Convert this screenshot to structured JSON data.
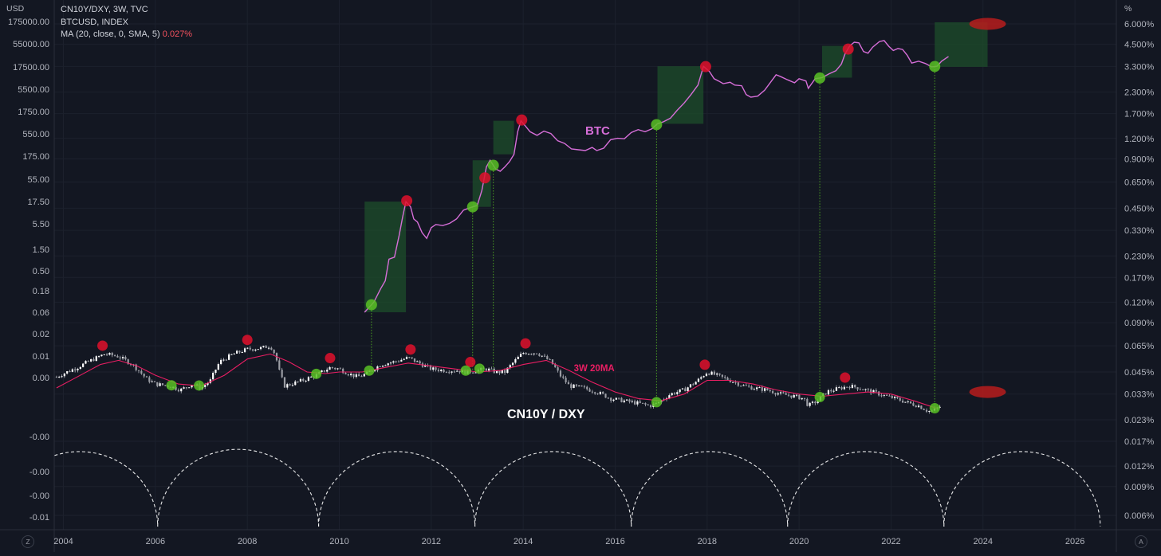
{
  "header": {
    "left_unit": "USD",
    "right_unit": "%",
    "legend_line1": "CN10Y/DXY, 3W, TVC",
    "legend_line2": "BTCUSD, INDEX",
    "legend_ma_label": "MA (20, close, 0, SMA, 5)",
    "legend_ma_value": "0.027%"
  },
  "corner_buttons": {
    "left": "Z",
    "right": "A"
  },
  "colors": {
    "background": "#131722",
    "btc_line": "#d66ed8",
    "ma_line": "#e91e63",
    "candle_up": "#ffffff",
    "candle_down": "#d1d4dc",
    "top_marker": "#e0112b",
    "bottom_marker": "#59c124",
    "range_box": "#1e4d2b",
    "guide_line": "#59c124",
    "cycle_arc": "#ffffff"
  },
  "chart_data": {
    "type": "line",
    "x_range": [
      2003.8,
      2026.9
    ],
    "left_axis": {
      "scale": "log",
      "ticks": [
        "175000.00",
        "55000.00",
        "17500.00",
        "5500.00",
        "1750.00",
        "550.00",
        "175.00",
        "55.00",
        "17.50",
        "5.50",
        "1.50",
        "0.50",
        "0.18",
        "0.06",
        "0.02",
        "0.01",
        "0.00",
        "-0.00",
        "-0.00",
        "-0.00",
        "-0.01"
      ]
    },
    "right_axis": {
      "scale": "log",
      "ticks": [
        "6.000%",
        "4.500%",
        "3.300%",
        "2.300%",
        "1.700%",
        "1.200%",
        "0.900%",
        "0.650%",
        "0.450%",
        "0.330%",
        "0.230%",
        "0.170%",
        "0.120%",
        "0.090%",
        "0.065%",
        "0.045%",
        "0.033%",
        "0.023%",
        "0.017%",
        "0.012%",
        "0.009%",
        "0.006%"
      ]
    },
    "x_ticks": [
      "2004",
      "2006",
      "2008",
      "2010",
      "2012",
      "2014",
      "2016",
      "2018",
      "2020",
      "2022",
      "2024",
      "2026"
    ],
    "annotations": {
      "btc": "BTC",
      "ma": "3W 20MA",
      "ratio": "CN10Y / DXY"
    },
    "btc_series": {
      "name": "BTCUSD",
      "points": [
        [
          2010.55,
          0.06
        ],
        [
          2010.75,
          0.1
        ],
        [
          2010.9,
          0.2
        ],
        [
          2011.0,
          0.3
        ],
        [
          2011.08,
          0.9
        ],
        [
          2011.2,
          1.0
        ],
        [
          2011.3,
          3
        ],
        [
          2011.38,
          8
        ],
        [
          2011.45,
          17
        ],
        [
          2011.55,
          13
        ],
        [
          2011.62,
          7
        ],
        [
          2011.7,
          6
        ],
        [
          2011.8,
          3.5
        ],
        [
          2011.9,
          2.6
        ],
        [
          2012.0,
          4.5
        ],
        [
          2012.1,
          5.3
        ],
        [
          2012.25,
          5.0
        ],
        [
          2012.4,
          5.6
        ],
        [
          2012.55,
          7
        ],
        [
          2012.7,
          11
        ],
        [
          2012.8,
          12
        ],
        [
          2012.9,
          13
        ],
        [
          2013.0,
          14
        ],
        [
          2013.1,
          30
        ],
        [
          2013.2,
          100
        ],
        [
          2013.28,
          140
        ],
        [
          2013.4,
          90
        ],
        [
          2013.5,
          80
        ],
        [
          2013.6,
          100
        ],
        [
          2013.7,
          130
        ],
        [
          2013.8,
          190
        ],
        [
          2013.88,
          600
        ],
        [
          2013.95,
          1050
        ],
        [
          2014.05,
          800
        ],
        [
          2014.15,
          600
        ],
        [
          2014.3,
          500
        ],
        [
          2014.45,
          620
        ],
        [
          2014.6,
          550
        ],
        [
          2014.75,
          380
        ],
        [
          2014.9,
          330
        ],
        [
          2015.05,
          250
        ],
        [
          2015.2,
          240
        ],
        [
          2015.35,
          230
        ],
        [
          2015.5,
          270
        ],
        [
          2015.6,
          230
        ],
        [
          2015.75,
          260
        ],
        [
          2015.9,
          400
        ],
        [
          2016.05,
          430
        ],
        [
          2016.2,
          420
        ],
        [
          2016.35,
          580
        ],
        [
          2016.5,
          670
        ],
        [
          2016.65,
          600
        ],
        [
          2016.8,
          700
        ],
        [
          2016.92,
          900
        ],
        [
          2017.05,
          1000
        ],
        [
          2017.2,
          1200
        ],
        [
          2017.35,
          1800
        ],
        [
          2017.5,
          2600
        ],
        [
          2017.65,
          4000
        ],
        [
          2017.8,
          6500
        ],
        [
          2017.92,
          17000
        ],
        [
          2018.05,
          13000
        ],
        [
          2018.15,
          9000
        ],
        [
          2018.25,
          8000
        ],
        [
          2018.35,
          7000
        ],
        [
          2018.5,
          7500
        ],
        [
          2018.6,
          6500
        ],
        [
          2018.75,
          6300
        ],
        [
          2018.85,
          4000
        ],
        [
          2018.95,
          3500
        ],
        [
          2019.1,
          3700
        ],
        [
          2019.25,
          5000
        ],
        [
          2019.4,
          8000
        ],
        [
          2019.5,
          11000
        ],
        [
          2019.6,
          10000
        ],
        [
          2019.75,
          8500
        ],
        [
          2019.9,
          7300
        ],
        [
          2020.0,
          9000
        ],
        [
          2020.15,
          8000
        ],
        [
          2020.2,
          5500
        ],
        [
          2020.35,
          9000
        ],
        [
          2020.5,
          9500
        ],
        [
          2020.65,
          11500
        ],
        [
          2020.8,
          13500
        ],
        [
          2020.92,
          19000
        ],
        [
          2021.0,
          32000
        ],
        [
          2021.1,
          48000
        ],
        [
          2021.2,
          58000
        ],
        [
          2021.3,
          56000
        ],
        [
          2021.4,
          36000
        ],
        [
          2021.5,
          33000
        ],
        [
          2021.6,
          45000
        ],
        [
          2021.75,
          60000
        ],
        [
          2021.85,
          63000
        ],
        [
          2021.95,
          47000
        ],
        [
          2022.05,
          38000
        ],
        [
          2022.15,
          42000
        ],
        [
          2022.25,
          40000
        ],
        [
          2022.35,
          30000
        ],
        [
          2022.45,
          20000
        ],
        [
          2022.6,
          22000
        ],
        [
          2022.75,
          19500
        ],
        [
          2022.88,
          16500
        ],
        [
          2023.0,
          17000
        ],
        [
          2023.1,
          22000
        ],
        [
          2023.25,
          28000
        ]
      ]
    },
    "ratio_series": {
      "name": "CN10Y/DXY",
      "unit": "%",
      "points": [
        [
          2003.85,
          0.042
        ],
        [
          2004.0,
          0.044
        ],
        [
          2004.3,
          0.048
        ],
        [
          2004.6,
          0.053
        ],
        [
          2004.9,
          0.058
        ],
        [
          2005.2,
          0.056
        ],
        [
          2005.5,
          0.05
        ],
        [
          2005.8,
          0.041
        ],
        [
          2006.0,
          0.038
        ],
        [
          2006.3,
          0.037
        ],
        [
          2006.55,
          0.035
        ],
        [
          2006.8,
          0.038
        ],
        [
          2007.0,
          0.036
        ],
        [
          2007.2,
          0.04
        ],
        [
          2007.4,
          0.052
        ],
        [
          2007.7,
          0.058
        ],
        [
          2008.0,
          0.062
        ],
        [
          2008.3,
          0.063
        ],
        [
          2008.5,
          0.065
        ],
        [
          2008.6,
          0.058
        ],
        [
          2008.7,
          0.045
        ],
        [
          2008.8,
          0.037
        ],
        [
          2008.95,
          0.038
        ],
        [
          2009.2,
          0.04
        ],
        [
          2009.5,
          0.043
        ],
        [
          2009.8,
          0.048
        ],
        [
          2010.0,
          0.047
        ],
        [
          2010.2,
          0.044
        ],
        [
          2010.4,
          0.042
        ],
        [
          2010.6,
          0.044
        ],
        [
          2010.9,
          0.05
        ],
        [
          2011.2,
          0.052
        ],
        [
          2011.5,
          0.055
        ],
        [
          2011.8,
          0.05
        ],
        [
          2012.0,
          0.047
        ],
        [
          2012.3,
          0.046
        ],
        [
          2012.6,
          0.046
        ],
        [
          2012.75,
          0.045
        ],
        [
          2013.0,
          0.046
        ],
        [
          2013.2,
          0.047
        ],
        [
          2013.4,
          0.045
        ],
        [
          2013.6,
          0.045
        ],
        [
          2013.8,
          0.052
        ],
        [
          2014.0,
          0.059
        ],
        [
          2014.3,
          0.059
        ],
        [
          2014.6,
          0.052
        ],
        [
          2014.8,
          0.043
        ],
        [
          2015.0,
          0.037
        ],
        [
          2015.3,
          0.036
        ],
        [
          2015.6,
          0.034
        ],
        [
          2015.9,
          0.031
        ],
        [
          2016.2,
          0.03
        ],
        [
          2016.5,
          0.029
        ],
        [
          2016.75,
          0.028
        ],
        [
          2016.92,
          0.029
        ],
        [
          2017.2,
          0.033
        ],
        [
          2017.5,
          0.035
        ],
        [
          2017.8,
          0.04
        ],
        [
          2018.0,
          0.045
        ],
        [
          2018.2,
          0.043
        ],
        [
          2018.5,
          0.04
        ],
        [
          2018.8,
          0.037
        ],
        [
          2019.0,
          0.036
        ],
        [
          2019.3,
          0.035
        ],
        [
          2019.6,
          0.033
        ],
        [
          2019.9,
          0.032
        ],
        [
          2020.1,
          0.031
        ],
        [
          2020.2,
          0.028
        ],
        [
          2020.4,
          0.03
        ],
        [
          2020.6,
          0.034
        ],
        [
          2020.9,
          0.036
        ],
        [
          2021.1,
          0.037
        ],
        [
          2021.3,
          0.036
        ],
        [
          2021.6,
          0.034
        ],
        [
          2021.9,
          0.032
        ],
        [
          2022.1,
          0.031
        ],
        [
          2022.4,
          0.029
        ],
        [
          2022.6,
          0.028
        ],
        [
          2022.8,
          0.026
        ],
        [
          2022.9,
          0.026
        ],
        [
          2023.0,
          0.027
        ],
        [
          2023.1,
          0.028
        ]
      ]
    },
    "ma_series": {
      "name": "MA (20, close, 0, SMA, 5)",
      "unit": "%",
      "points": [
        [
          2003.85,
          0.036
        ],
        [
          2004.3,
          0.042
        ],
        [
          2004.8,
          0.05
        ],
        [
          2005.2,
          0.053
        ],
        [
          2005.6,
          0.049
        ],
        [
          2006.0,
          0.043
        ],
        [
          2006.5,
          0.038
        ],
        [
          2007.0,
          0.037
        ],
        [
          2007.5,
          0.043
        ],
        [
          2008.0,
          0.054
        ],
        [
          2008.5,
          0.058
        ],
        [
          2008.9,
          0.052
        ],
        [
          2009.3,
          0.045
        ],
        [
          2009.7,
          0.044
        ],
        [
          2010.0,
          0.045
        ],
        [
          2010.5,
          0.045
        ],
        [
          2011.0,
          0.048
        ],
        [
          2011.5,
          0.051
        ],
        [
          2012.0,
          0.049
        ],
        [
          2012.5,
          0.047
        ],
        [
          2013.0,
          0.045
        ],
        [
          2013.5,
          0.046
        ],
        [
          2014.0,
          0.05
        ],
        [
          2014.5,
          0.053
        ],
        [
          2015.0,
          0.046
        ],
        [
          2015.5,
          0.039
        ],
        [
          2016.0,
          0.034
        ],
        [
          2016.5,
          0.031
        ],
        [
          2017.0,
          0.03
        ],
        [
          2017.5,
          0.033
        ],
        [
          2018.0,
          0.04
        ],
        [
          2018.5,
          0.04
        ],
        [
          2019.0,
          0.038
        ],
        [
          2019.5,
          0.035
        ],
        [
          2020.0,
          0.033
        ],
        [
          2020.5,
          0.032
        ],
        [
          2021.0,
          0.033
        ],
        [
          2021.5,
          0.034
        ],
        [
          2022.0,
          0.033
        ],
        [
          2022.5,
          0.03
        ],
        [
          2023.0,
          0.027
        ]
      ]
    },
    "ratio_bottoms": [
      2006.35,
      2006.95,
      2009.5,
      2010.65,
      2012.75,
      2013.05,
      2016.9,
      2020.45,
      2022.95
    ],
    "ratio_tops": [
      2004.85,
      2008.0,
      2009.8,
      2011.55,
      2012.85,
      2014.05,
      2017.95,
      2021.0
    ],
    "btc_bottoms": [
      2010.7,
      2012.9,
      2013.35,
      2016.9,
      2020.45,
      2022.95
    ],
    "btc_tops": [
      2011.45,
      2013.15,
      2013.95,
      2017.95,
      2021.05
    ],
    "green_boxes": [
      {
        "x0": 2010.55,
        "x1": 2011.45,
        "y0": 0.06,
        "y1": 17
      },
      {
        "x0": 2012.9,
        "x1": 2013.3,
        "y0": 13,
        "y1": 140
      },
      {
        "x0": 2013.35,
        "x1": 2013.8,
        "y0": 190,
        "y1": 1050
      },
      {
        "x0": 2016.92,
        "x1": 2017.92,
        "y0": 900,
        "y1": 17000
      },
      {
        "x0": 2020.5,
        "x1": 2021.15,
        "y0": 9500,
        "y1": 48000
      },
      {
        "x0": 2022.95,
        "x1": 2024.1,
        "y0": 16500,
        "y1": 160000
      }
    ],
    "ellipses": [
      {
        "x": 2024.1,
        "pct": 6.0
      },
      {
        "x": 2024.1,
        "pct": 0.034
      }
    ],
    "cycle_lows": [
      2006.05,
      2009.55,
      2012.95,
      2016.35,
      2019.75,
      2023.15,
      2026.55
    ],
    "cycle_period": 3.4,
    "grid": true,
    "legend_position": "top-left"
  }
}
